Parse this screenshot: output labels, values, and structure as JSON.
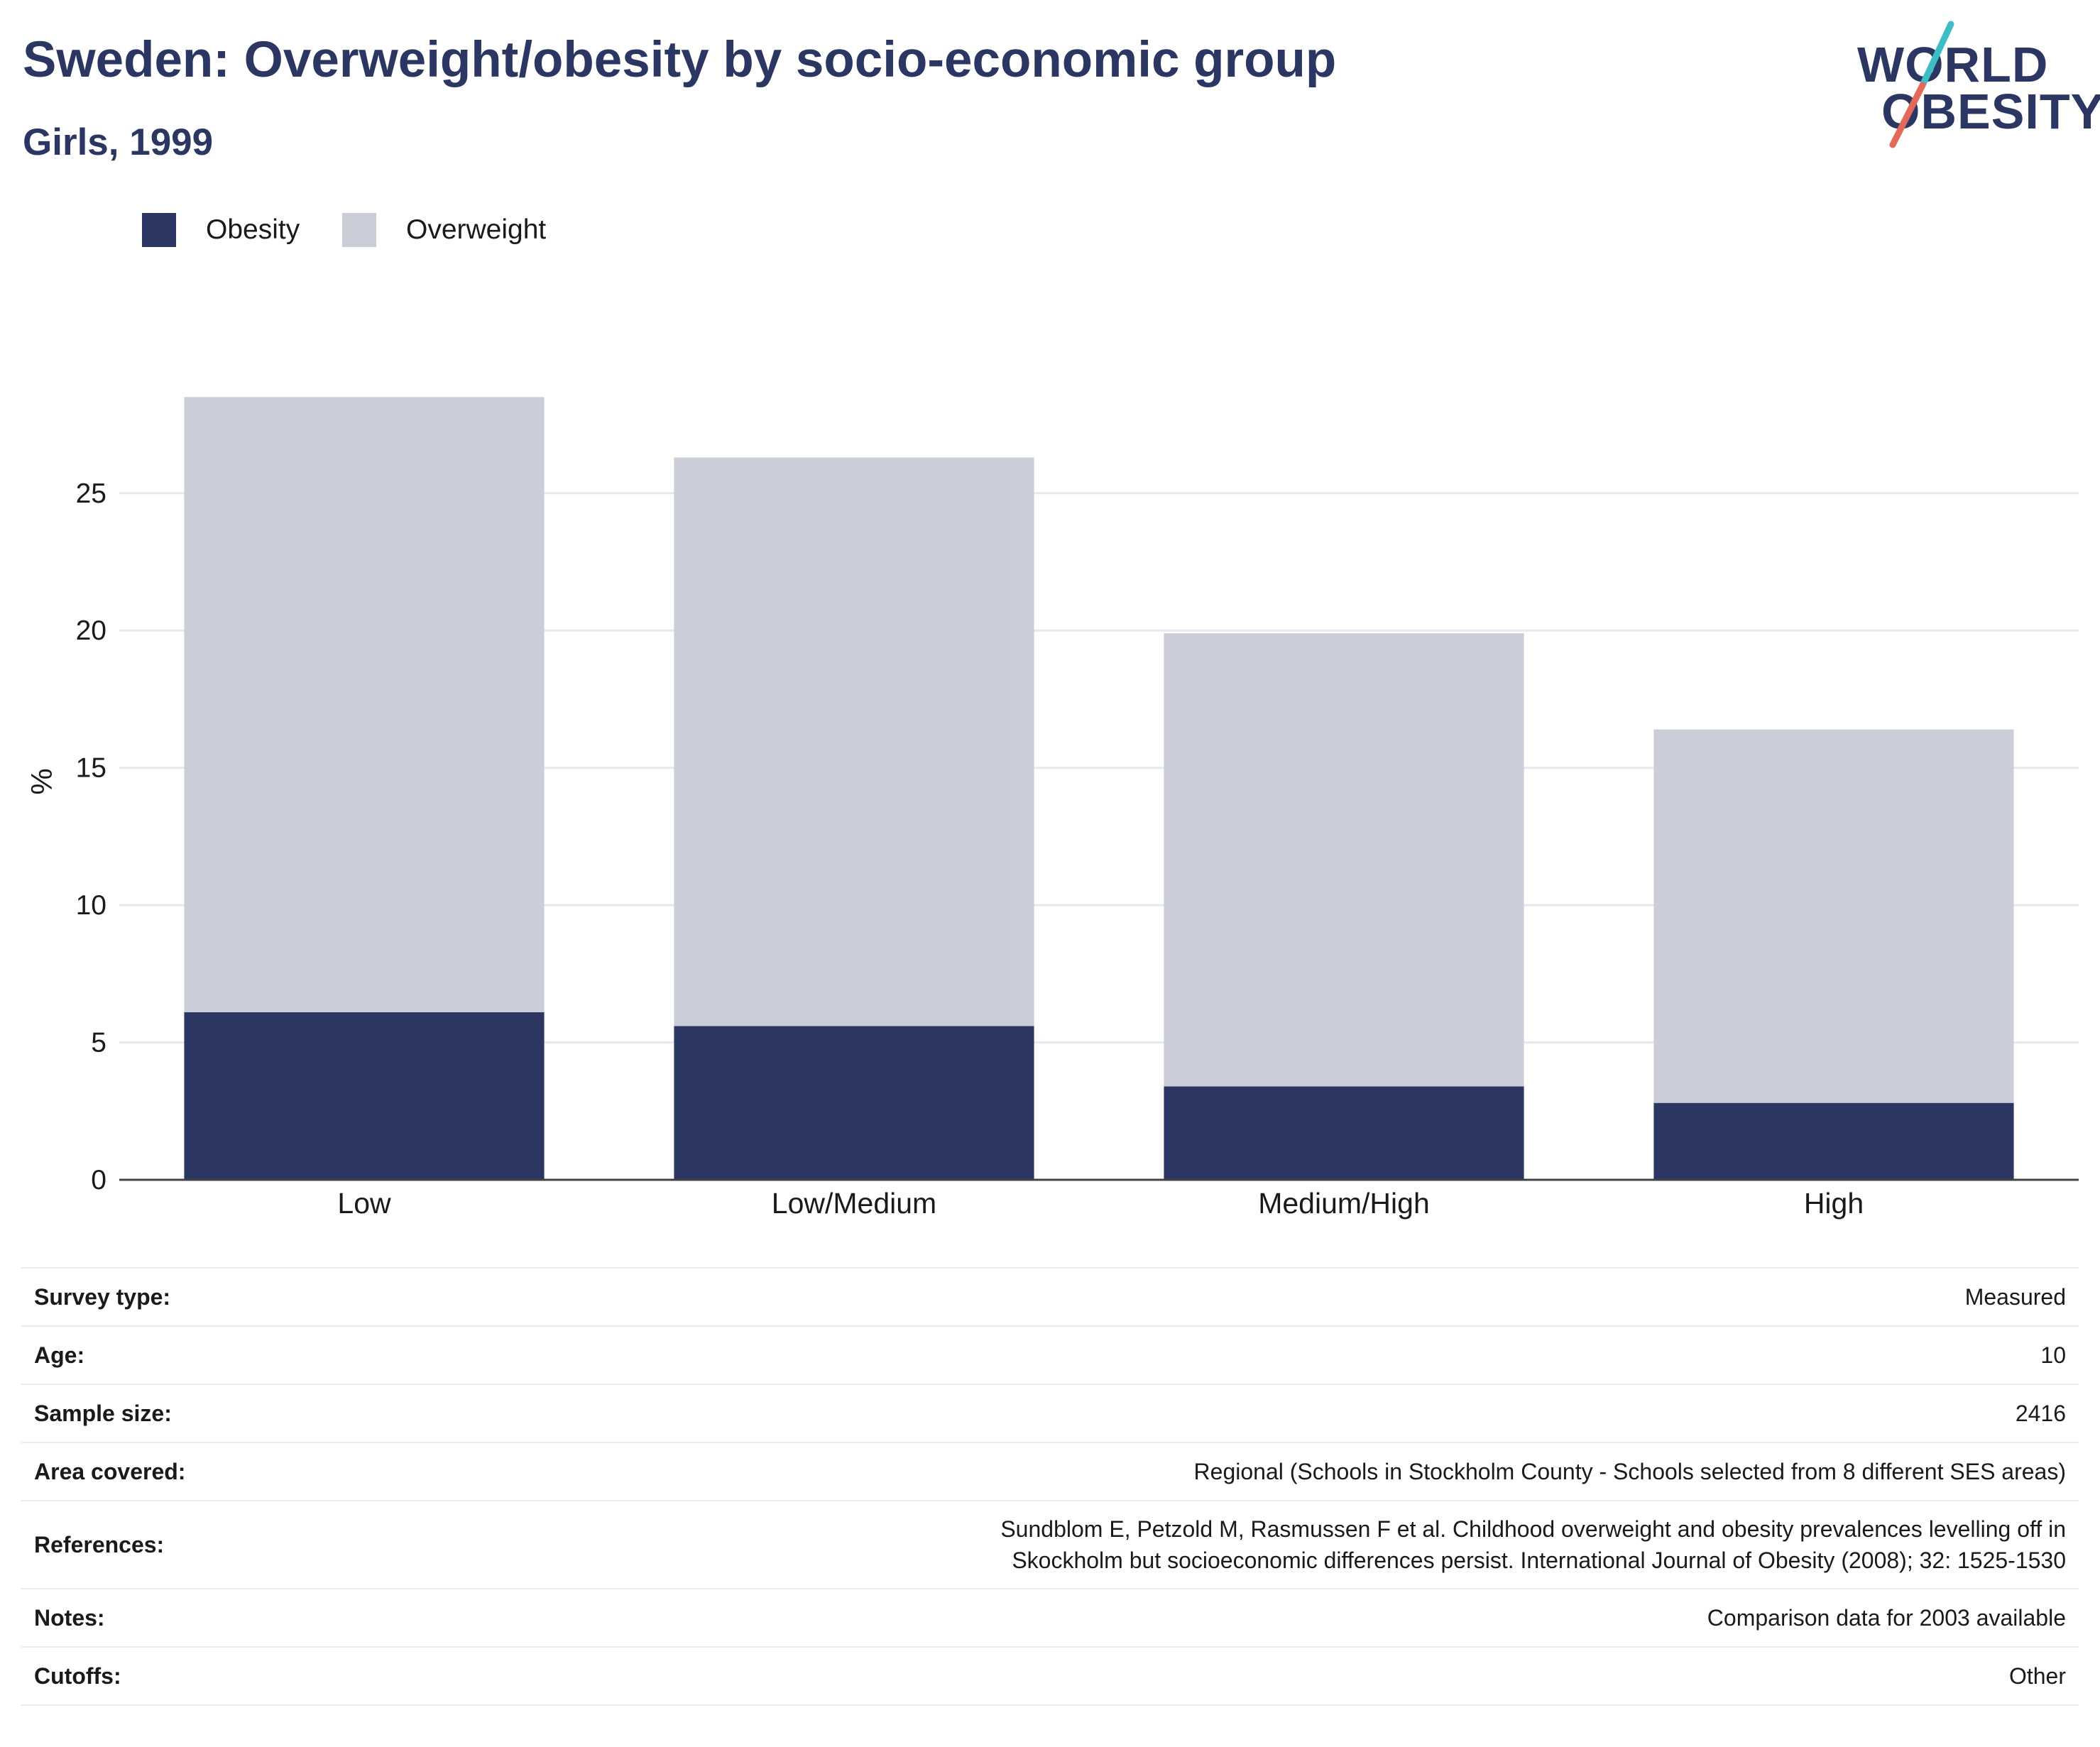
{
  "header": {
    "title": "Sweden: Overweight/obesity by socio-economic group",
    "subtitle": "Girls, 1999"
  },
  "logo": {
    "line1": "WORLD",
    "line2": "OBESITY",
    "slash_top_color": "#3dbdc6",
    "slash_bottom_color": "#e26a5a"
  },
  "legend": [
    {
      "label": "Obesity",
      "color": "#2b3662"
    },
    {
      "label": "Overweight",
      "color": "#cbcdd9"
    }
  ],
  "chart_data": {
    "type": "bar",
    "stacked": true,
    "categories": [
      "Low",
      "Low/Medium",
      "Medium/High",
      "High"
    ],
    "series": [
      {
        "name": "Obesity",
        "color": "#2b3662",
        "values": [
          6.1,
          5.6,
          3.4,
          2.8
        ]
      },
      {
        "name": "Overweight",
        "color": "#cbcdd9",
        "values": [
          22.4,
          20.7,
          16.5,
          13.6
        ]
      }
    ],
    "ylabel": "%",
    "xlabel": "",
    "yticks": [
      0,
      5,
      10,
      15,
      20,
      25
    ],
    "ylim": [
      0,
      29
    ],
    "grid": true,
    "legend_position": "top-left"
  },
  "info": [
    {
      "label": "Survey type:",
      "value": "Measured"
    },
    {
      "label": "Age:",
      "value": "10"
    },
    {
      "label": "Sample size:",
      "value": "2416"
    },
    {
      "label": "Area covered:",
      "value": "Regional (Schools in Stockholm County - Schools selected from 8 different SES areas)"
    },
    {
      "label": "References:",
      "value": "Sundblom E, Petzold M, Rasmussen F et al. Childhood overweight and obesity prevalences levelling off in Skockholm but socioeconomic differences persist. International Journal of Obesity (2008); 32: 1525-1530"
    },
    {
      "label": "Notes:",
      "value": "Comparison data for 2003 available"
    },
    {
      "label": "Cutoffs:",
      "value": "Other"
    }
  ]
}
